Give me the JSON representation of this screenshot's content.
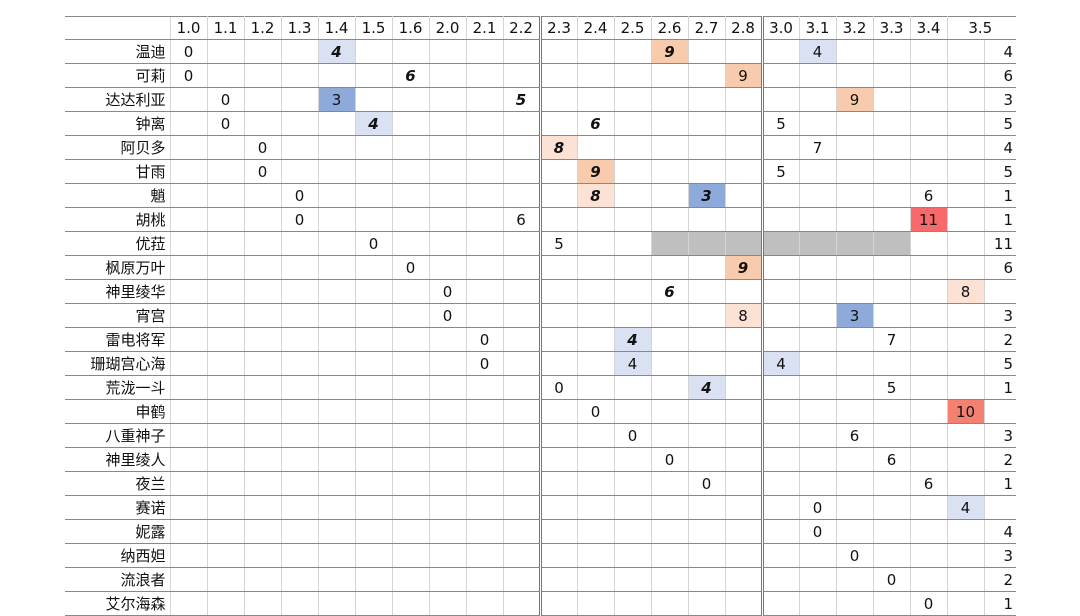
{
  "header": {
    "versions": [
      "1.0",
      "1.1",
      "1.2",
      "1.3",
      "1.4",
      "1.5",
      "1.6",
      "2.0",
      "2.1",
      "2.2",
      "2.3",
      "2.4",
      "2.5",
      "2.6",
      "2.7",
      "2.8",
      "3.0",
      "3.1",
      "3.2",
      "3.3",
      "3.4",
      "3.5"
    ]
  },
  "rows": [
    {
      "name": "温迪",
      "cells": [
        0,
        null,
        null,
        null,
        {
          "v": 4,
          "fill": "#d9e1f2",
          "em": true
        },
        null,
        null,
        null,
        null,
        null,
        null,
        null,
        null,
        {
          "v": 9,
          "fill": "#f8cbad",
          "em": true
        },
        null,
        null,
        null,
        {
          "v": 4,
          "fill": "#d9e1f2"
        },
        null,
        null,
        null,
        null
      ],
      "count": 4
    },
    {
      "name": "可莉",
      "cells": [
        0,
        null,
        null,
        null,
        null,
        null,
        {
          "v": 6,
          "em": true
        },
        null,
        null,
        null,
        null,
        null,
        null,
        null,
        null,
        {
          "v": 9,
          "fill": "#f8cbad"
        },
        null,
        null,
        null,
        null,
        null,
        null
      ],
      "count": 6
    },
    {
      "name": "达达利亚",
      "cells": [
        null,
        0,
        null,
        null,
        {
          "v": 3,
          "fill": "#8eaadb"
        },
        null,
        null,
        null,
        null,
        {
          "v": 5,
          "em": true
        },
        null,
        null,
        null,
        null,
        null,
        null,
        null,
        null,
        {
          "v": 9,
          "fill": "#f8cbad"
        },
        null,
        null,
        null
      ],
      "count": 3
    },
    {
      "name": "钟离",
      "cells": [
        null,
        0,
        null,
        null,
        null,
        {
          "v": 4,
          "fill": "#d9e1f2",
          "em": true
        },
        null,
        null,
        null,
        null,
        null,
        {
          "v": 6,
          "em": true
        },
        null,
        null,
        null,
        null,
        5,
        null,
        null,
        null,
        null,
        null
      ],
      "count": 5
    },
    {
      "name": "阿贝多",
      "cells": [
        null,
        null,
        0,
        null,
        null,
        null,
        null,
        null,
        null,
        null,
        {
          "v": 8,
          "fill": "#fbe2d5",
          "em": true
        },
        null,
        null,
        null,
        null,
        null,
        null,
        7,
        null,
        null,
        null,
        null
      ],
      "count": 4
    },
    {
      "name": "甘雨",
      "cells": [
        null,
        null,
        0,
        null,
        null,
        null,
        null,
        null,
        null,
        null,
        null,
        {
          "v": 9,
          "fill": "#f8cbad",
          "em": true
        },
        null,
        null,
        null,
        null,
        5,
        null,
        null,
        null,
        null,
        null
      ],
      "count": 5
    },
    {
      "name": "魈",
      "cells": [
        null,
        null,
        null,
        0,
        null,
        null,
        null,
        null,
        null,
        null,
        null,
        {
          "v": 8,
          "fill": "#fbe2d5",
          "em": true
        },
        null,
        null,
        {
          "v": 3,
          "fill": "#8eaadb",
          "em": true
        },
        null,
        null,
        null,
        null,
        null,
        6,
        null
      ],
      "count": 1
    },
    {
      "name": "胡桃",
      "cells": [
        null,
        null,
        null,
        0,
        null,
        null,
        null,
        null,
        null,
        6,
        null,
        null,
        null,
        null,
        null,
        null,
        null,
        null,
        null,
        null,
        {
          "v": 11,
          "fill": "#f8696b"
        },
        null
      ],
      "count": 1
    },
    {
      "name": "优菈",
      "cells": [
        null,
        null,
        null,
        null,
        null,
        0,
        null,
        null,
        null,
        null,
        5,
        null,
        null,
        {
          "fill": "#bfbfbf"
        },
        {
          "fill": "#bfbfbf"
        },
        {
          "fill": "#bfbfbf"
        },
        {
          "fill": "#bfbfbf"
        },
        {
          "fill": "#bfbfbf"
        },
        {
          "fill": "#bfbfbf"
        },
        {
          "fill": "#bfbfbf"
        },
        null,
        null
      ],
      "count": 11
    },
    {
      "name": "枫原万叶",
      "cells": [
        null,
        null,
        null,
        null,
        null,
        null,
        0,
        null,
        null,
        null,
        null,
        null,
        null,
        null,
        null,
        {
          "v": 9,
          "fill": "#f8cbad",
          "em": true
        },
        null,
        null,
        null,
        null,
        null,
        null
      ],
      "count": 6
    },
    {
      "name": "神里绫华",
      "cells": [
        null,
        null,
        null,
        null,
        null,
        null,
        null,
        0,
        null,
        null,
        null,
        null,
        null,
        {
          "v": 6,
          "em": true
        },
        null,
        null,
        null,
        null,
        null,
        null,
        null,
        {
          "v": 8,
          "fill": "#fbe2d5"
        }
      ],
      "count": null
    },
    {
      "name": "宵宫",
      "cells": [
        null,
        null,
        null,
        null,
        null,
        null,
        null,
        0,
        null,
        null,
        null,
        null,
        null,
        null,
        null,
        {
          "v": 8,
          "fill": "#fbe2d5"
        },
        null,
        null,
        {
          "v": 3,
          "fill": "#8eaadb"
        },
        null,
        null,
        null
      ],
      "count": 3
    },
    {
      "name": "雷电将军",
      "cells": [
        null,
        null,
        null,
        null,
        null,
        null,
        null,
        null,
        0,
        null,
        null,
        null,
        {
          "v": 4,
          "fill": "#d9e1f2",
          "em": true
        },
        null,
        null,
        null,
        null,
        null,
        null,
        7,
        null,
        null
      ],
      "count": 2
    },
    {
      "name": "珊瑚宫心海",
      "cells": [
        null,
        null,
        null,
        null,
        null,
        null,
        null,
        null,
        0,
        null,
        null,
        null,
        {
          "v": 4,
          "fill": "#d9e1f2"
        },
        null,
        null,
        null,
        {
          "v": 4,
          "fill": "#d9e1f2"
        },
        null,
        null,
        null,
        null,
        null
      ],
      "count": 5
    },
    {
      "name": "荒泷一斗",
      "cells": [
        null,
        null,
        null,
        null,
        null,
        null,
        null,
        null,
        null,
        null,
        0,
        null,
        null,
        null,
        {
          "v": 4,
          "fill": "#d9e1f2",
          "em": true
        },
        null,
        null,
        null,
        null,
        5,
        null,
        null
      ],
      "count": 1
    },
    {
      "name": "申鹤",
      "cells": [
        null,
        null,
        null,
        null,
        null,
        null,
        null,
        null,
        null,
        null,
        null,
        0,
        null,
        null,
        null,
        null,
        null,
        null,
        null,
        null,
        null,
        {
          "v": 10,
          "fill": "#f4806f"
        }
      ],
      "count": null
    },
    {
      "name": "八重神子",
      "cells": [
        null,
        null,
        null,
        null,
        null,
        null,
        null,
        null,
        null,
        null,
        null,
        null,
        0,
        null,
        null,
        null,
        null,
        null,
        6,
        null,
        null,
        null
      ],
      "count": 3
    },
    {
      "name": "神里绫人",
      "cells": [
        null,
        null,
        null,
        null,
        null,
        null,
        null,
        null,
        null,
        null,
        null,
        null,
        null,
        0,
        null,
        null,
        null,
        null,
        null,
        6,
        null,
        null
      ],
      "count": 2
    },
    {
      "name": "夜兰",
      "cells": [
        null,
        null,
        null,
        null,
        null,
        null,
        null,
        null,
        null,
        null,
        null,
        null,
        null,
        null,
        0,
        null,
        null,
        null,
        null,
        null,
        6,
        null
      ],
      "count": 1
    },
    {
      "name": "赛诺",
      "cells": [
        null,
        null,
        null,
        null,
        null,
        null,
        null,
        null,
        null,
        null,
        null,
        null,
        null,
        null,
        null,
        null,
        null,
        0,
        null,
        null,
        null,
        {
          "v": 4,
          "fill": "#d9e1f2"
        }
      ],
      "count": null
    },
    {
      "name": "妮露",
      "cells": [
        null,
        null,
        null,
        null,
        null,
        null,
        null,
        null,
        null,
        null,
        null,
        null,
        null,
        null,
        null,
        null,
        null,
        0,
        null,
        null,
        null,
        null
      ],
      "count": 4
    },
    {
      "name": "纳西妲",
      "cells": [
        null,
        null,
        null,
        null,
        null,
        null,
        null,
        null,
        null,
        null,
        null,
        null,
        null,
        null,
        null,
        null,
        null,
        null,
        0,
        null,
        null,
        null
      ],
      "count": 3
    },
    {
      "name": "流浪者",
      "cells": [
        null,
        null,
        null,
        null,
        null,
        null,
        null,
        null,
        null,
        null,
        null,
        null,
        null,
        null,
        null,
        null,
        null,
        null,
        null,
        0,
        null,
        null
      ],
      "count": 2
    },
    {
      "name": "艾尔海森",
      "cells": [
        null,
        null,
        null,
        null,
        null,
        null,
        null,
        null,
        null,
        null,
        null,
        null,
        null,
        null,
        null,
        null,
        null,
        null,
        null,
        null,
        0,
        null
      ],
      "count": 1
    }
  ]
}
